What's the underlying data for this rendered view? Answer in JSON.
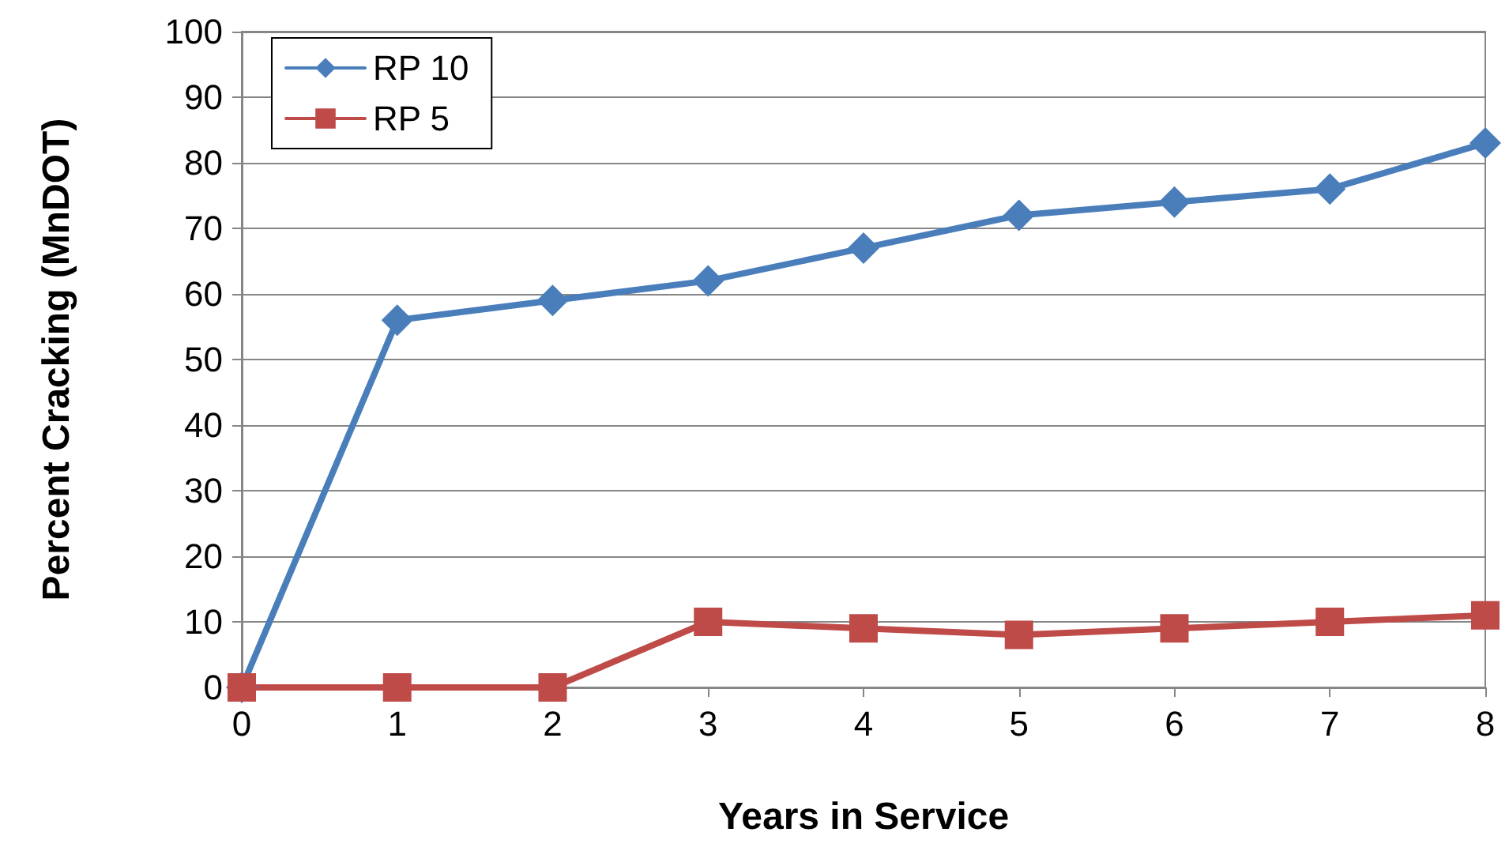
{
  "chart_data": {
    "type": "line",
    "xlabel": "Years in Service",
    "ylabel": "Percent Cracking (MnDOT)",
    "x": [
      0,
      1,
      2,
      3,
      4,
      5,
      6,
      7,
      8
    ],
    "xlim": [
      0,
      8
    ],
    "xticks": [
      0,
      1,
      2,
      3,
      4,
      5,
      6,
      7,
      8
    ],
    "ylim": [
      0,
      100
    ],
    "yticks": [
      0,
      10,
      20,
      30,
      40,
      50,
      60,
      70,
      80,
      90,
      100
    ],
    "grid": "y",
    "legend": "top left",
    "line_style": "solid",
    "series": [
      {
        "name": "RP 10",
        "color": "#4a7ebb",
        "marker": "diamond",
        "values": [
          0,
          56,
          59,
          62,
          67,
          72,
          74,
          76,
          83
        ]
      },
      {
        "name": "RP 5",
        "color": "#be4b48",
        "marker": "square",
        "values": [
          0,
          0,
          0,
          10,
          9,
          8,
          9,
          10,
          11
        ]
      }
    ]
  }
}
